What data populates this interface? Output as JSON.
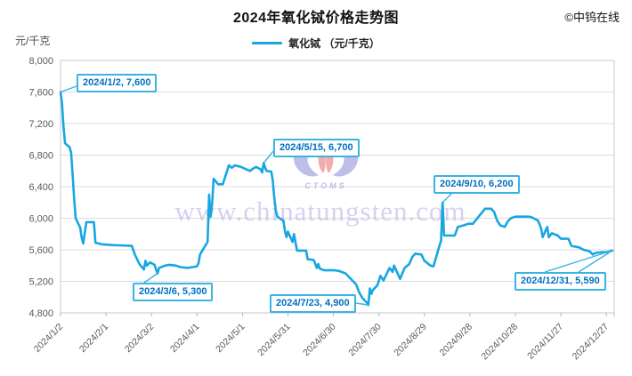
{
  "header": {
    "copyright": "©中钨在线"
  },
  "watermark": {
    "text": "www.chinatungsten.com",
    "logo_text": "CTOMS"
  },
  "colors": {
    "line": "#18a6e2",
    "annotation_text": "#0070c0",
    "annotation_border": "#3ab3e5",
    "grid": "#dcdcdc",
    "plot_border": "#c9c9c9",
    "tick": "#b5b5b5",
    "axis_text": "#595959",
    "watermark_text": "#b4aee6",
    "logo_purple": "#8a8cd8",
    "logo_red": "#e86a6a"
  },
  "chart_data": {
    "type": "line",
    "title": "2024年氧化铽价格走势图",
    "ylabel": "元/千克",
    "legend": [
      "氧化铽 （元/千克）"
    ],
    "legend_position": "top",
    "grid": "horizontal",
    "ylim": [
      4800,
      8000
    ],
    "y_ticks": [
      8000,
      7600,
      7200,
      6800,
      6400,
      6000,
      5600,
      5200,
      4800
    ],
    "x_range": [
      "2024/1/2",
      "2024/12/31"
    ],
    "x_ticks": [
      "2024/1/2",
      "2024/2/1",
      "2024/3/2",
      "2024/4/1",
      "2024/5/1",
      "2024/5/31",
      "2024/6/30",
      "2024/7/30",
      "2024/8/29",
      "2024/9/28",
      "2024/10/28",
      "2024/11/27",
      "2024/12/27"
    ],
    "series": [
      {
        "name": "氧化铽",
        "unit": "元/千克",
        "points": [
          [
            "2024/1/2",
            7600
          ],
          [
            "2024/1/3",
            7450
          ],
          [
            "2024/1/4",
            7150
          ],
          [
            "2024/1/5",
            6950
          ],
          [
            "2024/1/8",
            6900
          ],
          [
            "2024/1/9",
            6830
          ],
          [
            "2024/1/10",
            6550
          ],
          [
            "2024/1/11",
            6250
          ],
          [
            "2024/1/12",
            6000
          ],
          [
            "2024/1/15",
            5880
          ],
          [
            "2024/1/16",
            5750
          ],
          [
            "2024/1/17",
            5680
          ],
          [
            "2024/1/19",
            5950
          ],
          [
            "2024/1/24",
            5950
          ],
          [
            "2024/1/25",
            5690
          ],
          [
            "2024/1/29",
            5670
          ],
          [
            "2024/2/5",
            5660
          ],
          [
            "2024/2/18",
            5650
          ],
          [
            "2024/2/20",
            5540
          ],
          [
            "2024/2/21",
            5500
          ],
          [
            "2024/2/23",
            5420
          ],
          [
            "2024/2/26",
            5350
          ],
          [
            "2024/2/27",
            5460
          ],
          [
            "2024/2/28",
            5400
          ],
          [
            "2024/3/1",
            5440
          ],
          [
            "2024/3/4",
            5410
          ],
          [
            "2024/3/5",
            5350
          ],
          [
            "2024/3/6",
            5300
          ],
          [
            "2024/3/7",
            5370
          ],
          [
            "2024/3/11",
            5400
          ],
          [
            "2024/3/14",
            5410
          ],
          [
            "2024/3/18",
            5400
          ],
          [
            "2024/3/21",
            5380
          ],
          [
            "2024/3/26",
            5370
          ],
          [
            "2024/4/1",
            5390
          ],
          [
            "2024/4/2",
            5430
          ],
          [
            "2024/4/3",
            5540
          ],
          [
            "2024/4/8",
            5700
          ],
          [
            "2024/4/9",
            6300
          ],
          [
            "2024/4/10",
            6020
          ],
          [
            "2024/4/11",
            6180
          ],
          [
            "2024/4/12",
            6500
          ],
          [
            "2024/4/15",
            6430
          ],
          [
            "2024/4/18",
            6430
          ],
          [
            "2024/4/22",
            6670
          ],
          [
            "2024/4/24",
            6640
          ],
          [
            "2024/4/26",
            6670
          ],
          [
            "2024/4/30",
            6650
          ],
          [
            "2024/5/6",
            6600
          ],
          [
            "2024/5/8",
            6630
          ],
          [
            "2024/5/10",
            6650
          ],
          [
            "2024/5/13",
            6620
          ],
          [
            "2024/5/14",
            6580
          ],
          [
            "2024/5/15",
            6700
          ],
          [
            "2024/5/16",
            6640
          ],
          [
            "2024/5/17",
            6600
          ],
          [
            "2024/5/20",
            6590
          ],
          [
            "2024/5/21",
            6470
          ],
          [
            "2024/5/22",
            6250
          ],
          [
            "2024/5/23",
            6090
          ],
          [
            "2024/5/24",
            6020
          ],
          [
            "2024/5/27",
            5980
          ],
          [
            "2024/5/28",
            5970
          ],
          [
            "2024/5/29",
            5840
          ],
          [
            "2024/5/30",
            5760
          ],
          [
            "2024/5/31",
            5830
          ],
          [
            "2024/6/3",
            5700
          ],
          [
            "2024/6/4",
            5800
          ],
          [
            "2024/6/5",
            5690
          ],
          [
            "2024/6/6",
            5590
          ],
          [
            "2024/6/12",
            5590
          ],
          [
            "2024/6/13",
            5480
          ],
          [
            "2024/6/17",
            5470
          ],
          [
            "2024/6/19",
            5370
          ],
          [
            "2024/6/20",
            5420
          ],
          [
            "2024/6/21",
            5360
          ],
          [
            "2024/6/24",
            5340
          ],
          [
            "2024/7/1",
            5340
          ],
          [
            "2024/7/4",
            5330
          ],
          [
            "2024/7/8",
            5300
          ],
          [
            "2024/7/10",
            5260
          ],
          [
            "2024/7/15",
            5160
          ],
          [
            "2024/7/17",
            5060
          ],
          [
            "2024/7/19",
            4990
          ],
          [
            "2024/7/22",
            4930
          ],
          [
            "2024/7/23",
            4900
          ],
          [
            "2024/7/24",
            5110
          ],
          [
            "2024/7/25",
            5040
          ],
          [
            "2024/7/26",
            5090
          ],
          [
            "2024/7/29",
            5150
          ],
          [
            "2024/7/31",
            5270
          ],
          [
            "2024/8/2",
            5210
          ],
          [
            "2024/8/6",
            5370
          ],
          [
            "2024/8/8",
            5320
          ],
          [
            "2024/8/9",
            5400
          ],
          [
            "2024/8/13",
            5230
          ],
          [
            "2024/8/14",
            5280
          ],
          [
            "2024/8/16",
            5370
          ],
          [
            "2024/8/19",
            5420
          ],
          [
            "2024/8/21",
            5510
          ],
          [
            "2024/8/23",
            5550
          ],
          [
            "2024/8/27",
            5540
          ],
          [
            "2024/8/29",
            5460
          ],
          [
            "2024/9/2",
            5400
          ],
          [
            "2024/9/4",
            5390
          ],
          [
            "2024/9/9",
            5720
          ],
          [
            "2024/9/10",
            6200
          ],
          [
            "2024/9/11",
            5780
          ],
          [
            "2024/9/18",
            5780
          ],
          [
            "2024/9/20",
            5890
          ],
          [
            "2024/9/24",
            5910
          ],
          [
            "2024/9/27",
            5930
          ],
          [
            "2024/9/30",
            5930
          ],
          [
            "2024/10/8",
            6120
          ],
          [
            "2024/10/12",
            6120
          ],
          [
            "2024/10/14",
            6080
          ],
          [
            "2024/10/16",
            5970
          ],
          [
            "2024/10/18",
            5910
          ],
          [
            "2024/10/21",
            5890
          ],
          [
            "2024/10/23",
            5960
          ],
          [
            "2024/10/25",
            6000
          ],
          [
            "2024/10/28",
            6020
          ],
          [
            "2024/11/6",
            6020
          ],
          [
            "2024/11/8",
            6010
          ],
          [
            "2024/11/12",
            5970
          ],
          [
            "2024/11/14",
            5870
          ],
          [
            "2024/11/15",
            5760
          ],
          [
            "2024/11/18",
            5890
          ],
          [
            "2024/11/19",
            5760
          ],
          [
            "2024/11/21",
            5810
          ],
          [
            "2024/11/25",
            5780
          ],
          [
            "2024/11/27",
            5740
          ],
          [
            "2024/12/2",
            5740
          ],
          [
            "2024/12/4",
            5650
          ],
          [
            "2024/12/9",
            5630
          ],
          [
            "2024/12/12",
            5600
          ],
          [
            "2024/12/16",
            5580
          ],
          [
            "2024/12/18",
            5540
          ],
          [
            "2024/12/20",
            5560
          ],
          [
            "2024/12/24",
            5570
          ],
          [
            "2024/12/27",
            5570
          ],
          [
            "2024/12/31",
            5590
          ]
        ]
      }
    ],
    "annotations": [
      {
        "label": "2024/1/2, 7,600",
        "date": "2024/1/2",
        "value": 7600
      },
      {
        "label": "2024/5/15, 6,700",
        "date": "2024/5/15",
        "value": 6700
      },
      {
        "label": "2024/3/6, 5,300",
        "date": "2024/3/6",
        "value": 5300
      },
      {
        "label": "2024/7/23, 4,900",
        "date": "2024/7/23",
        "value": 4900
      },
      {
        "label": "2024/9/10, 6,200",
        "date": "2024/9/10",
        "value": 6200
      },
      {
        "label": "2024/12/31, 5,590",
        "date": "2024/12/31",
        "value": 5590
      }
    ]
  }
}
